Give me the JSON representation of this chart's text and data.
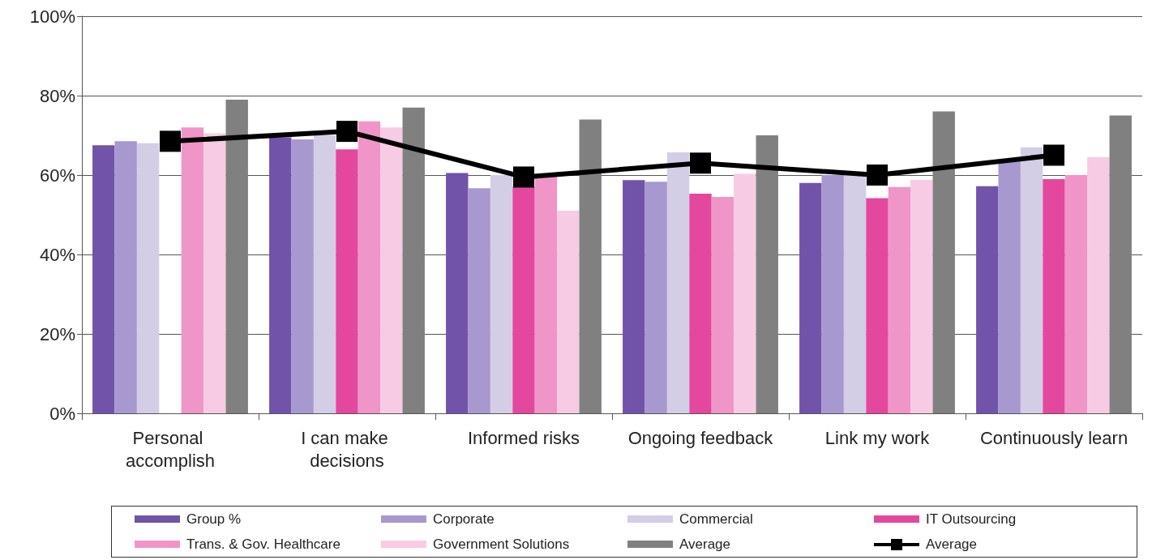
{
  "chart_data": {
    "type": "bar",
    "categories": [
      "Personal accomplish",
      "I can make decisions",
      "Informed risks",
      "Ongoing feedback",
      "Link my work",
      "Continuously learn"
    ],
    "series": [
      {
        "name": "Group %",
        "color": "#7153a9",
        "values": [
          67.5,
          69.5,
          60.5,
          58.7,
          58,
          57.2
        ]
      },
      {
        "name": "Corporate",
        "color": "#a898d0",
        "values": [
          68.5,
          69,
          56.7,
          58.3,
          60,
          63.5
        ]
      },
      {
        "name": "Commercial",
        "color": "#d4cde6",
        "values": [
          68,
          70,
          60,
          65.7,
          60,
          67
        ]
      },
      {
        "name": "IT Outsourcing",
        "color": "#e3489e",
        "values": [
          null,
          66.5,
          57,
          55.3,
          54.2,
          59
        ]
      },
      {
        "name": "Trans. & Gov. Healthcare",
        "color": "#f095c8",
        "values": [
          72,
          73.5,
          60,
          54.5,
          57,
          60
        ]
      },
      {
        "name": "Government Solutions",
        "color": "#f7cbe3",
        "values": [
          70.5,
          72,
          51,
          60.3,
          58.8,
          64.5
        ]
      },
      {
        "name": "Average",
        "color": "#808080",
        "values": [
          79,
          77,
          74,
          70,
          76,
          75
        ]
      },
      {
        "name": "Average",
        "type": "line",
        "marker": "square",
        "color": "#000000",
        "values": [
          68.5,
          71,
          59.5,
          63,
          60,
          65
        ]
      }
    ],
    "ylim": [
      0,
      100
    ],
    "yticks": [
      {
        "value": 0,
        "label": "0%"
      },
      {
        "value": 20,
        "label": "20%"
      },
      {
        "value": 40,
        "label": "40%"
      },
      {
        "value": 60,
        "label": "60%"
      },
      {
        "value": 80,
        "label": "80%"
      },
      {
        "value": 100,
        "label": "100%"
      }
    ],
    "grid": "y",
    "legend": "bottom"
  }
}
